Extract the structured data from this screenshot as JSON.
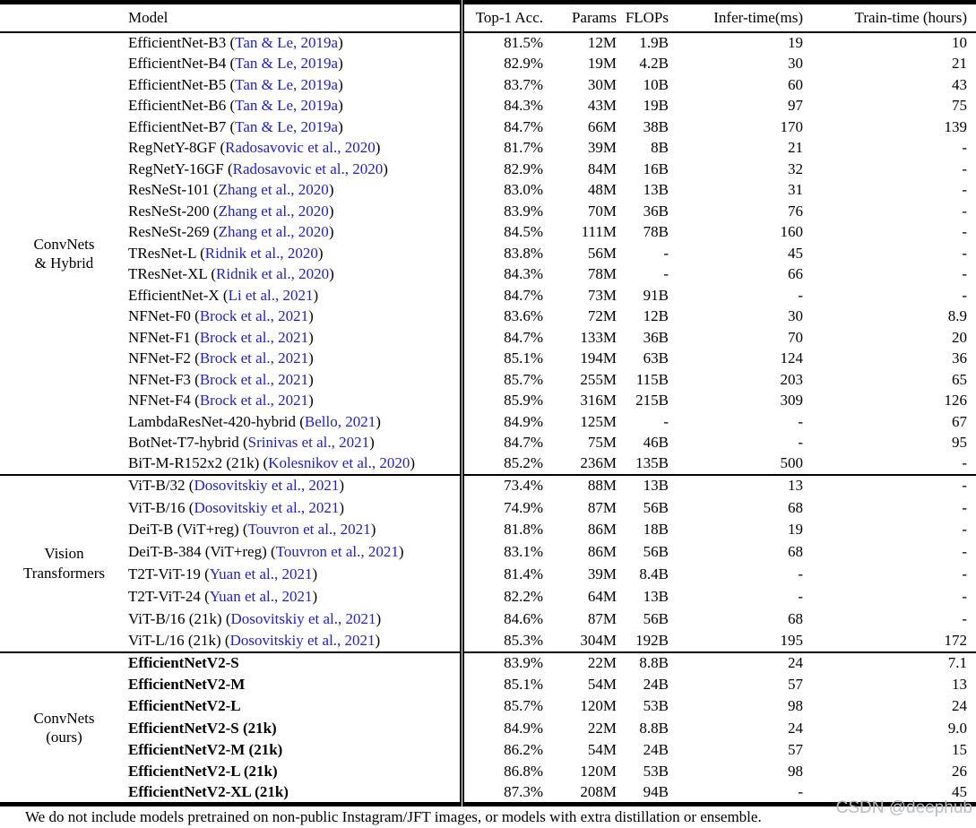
{
  "table": {
    "header": {
      "model_label": "Model",
      "metric_labels": [
        "Top-1 Acc.",
        "Params",
        "FLOPs",
        "Infer-time(ms)",
        "Train-time (hours)"
      ]
    },
    "sections": [
      {
        "group_lines": [
          "ConvNets",
          "& Hybrid"
        ],
        "bold": false,
        "rows": [
          {
            "model": "EfficientNet-B3",
            "cite": "Tan & Le, 2019a",
            "top1": "81.5%",
            "params": "12M",
            "flops": "1.9B",
            "infer": "19",
            "train": "10"
          },
          {
            "model": "EfficientNet-B4",
            "cite": "Tan & Le, 2019a",
            "top1": "82.9%",
            "params": "19M",
            "flops": "4.2B",
            "infer": "30",
            "train": "21"
          },
          {
            "model": "EfficientNet-B5",
            "cite": "Tan & Le, 2019a",
            "top1": "83.7%",
            "params": "30M",
            "flops": "10B",
            "infer": "60",
            "train": "43"
          },
          {
            "model": "EfficientNet-B6",
            "cite": "Tan & Le, 2019a",
            "top1": "84.3%",
            "params": "43M",
            "flops": "19B",
            "infer": "97",
            "train": "75"
          },
          {
            "model": "EfficientNet-B7",
            "cite": "Tan & Le, 2019a",
            "top1": "84.7%",
            "params": "66M",
            "flops": "38B",
            "infer": "170",
            "train": "139"
          },
          {
            "model": "RegNetY-8GF",
            "cite": "Radosavovic et al., 2020",
            "top1": "81.7%",
            "params": "39M",
            "flops": "8B",
            "infer": "21",
            "train": "-"
          },
          {
            "model": "RegNetY-16GF",
            "cite": "Radosavovic et al., 2020",
            "top1": "82.9%",
            "params": "84M",
            "flops": "16B",
            "infer": "32",
            "train": "-"
          },
          {
            "model": "ResNeSt-101",
            "cite": "Zhang et al., 2020",
            "top1": "83.0%",
            "params": "48M",
            "flops": "13B",
            "infer": "31",
            "train": "-"
          },
          {
            "model": "ResNeSt-200",
            "cite": "Zhang et al., 2020",
            "top1": "83.9%",
            "params": "70M",
            "flops": "36B",
            "infer": "76",
            "train": "-"
          },
          {
            "model": "ResNeSt-269",
            "cite": "Zhang et al., 2020",
            "top1": "84.5%",
            "params": "111M",
            "flops": "78B",
            "infer": "160",
            "train": "-"
          },
          {
            "model": "TResNet-L",
            "cite": "Ridnik et al., 2020",
            "top1": "83.8%",
            "params": "56M",
            "flops": "-",
            "infer": "45",
            "train": "-"
          },
          {
            "model": "TResNet-XL",
            "cite": "Ridnik et al., 2020",
            "top1": "84.3%",
            "params": "78M",
            "flops": "-",
            "infer": "66",
            "train": "-"
          },
          {
            "model": "EfficientNet-X",
            "cite": "Li et al., 2021",
            "top1": "84.7%",
            "params": "73M",
            "flops": "91B",
            "infer": "-",
            "train": "-"
          },
          {
            "model": "NFNet-F0",
            "cite": "Brock et al., 2021",
            "top1": "83.6%",
            "params": "72M",
            "flops": "12B",
            "infer": "30",
            "train": "8.9"
          },
          {
            "model": "NFNet-F1",
            "cite": "Brock et al., 2021",
            "top1": "84.7%",
            "params": "133M",
            "flops": "36B",
            "infer": "70",
            "train": "20"
          },
          {
            "model": "NFNet-F2",
            "cite": "Brock et al., 2021",
            "top1": "85.1%",
            "params": "194M",
            "flops": "63B",
            "infer": "124",
            "train": "36"
          },
          {
            "model": "NFNet-F3",
            "cite": "Brock et al., 2021",
            "top1": "85.7%",
            "params": "255M",
            "flops": "115B",
            "infer": "203",
            "train": "65"
          },
          {
            "model": "NFNet-F4",
            "cite": "Brock et al., 2021",
            "top1": "85.9%",
            "params": "316M",
            "flops": "215B",
            "infer": "309",
            "train": "126"
          },
          {
            "model": "LambdaResNet-420-hybrid",
            "cite": "Bello, 2021",
            "top1": "84.9%",
            "params": "125M",
            "flops": "-",
            "infer": "-",
            "train": "67"
          },
          {
            "model": "BotNet-T7-hybrid",
            "cite": "Srinivas et al., 2021",
            "top1": "84.7%",
            "params": "75M",
            "flops": "46B",
            "infer": "-",
            "train": "95"
          },
          {
            "model": "BiT-M-R152x2 (21k)",
            "cite": "Kolesnikov et al., 2020",
            "top1": "85.2%",
            "params": "236M",
            "flops": "135B",
            "infer": "500",
            "train": "-"
          }
        ]
      },
      {
        "group_lines": [
          "Vision",
          "Transformers"
        ],
        "bold": false,
        "rows": [
          {
            "model": "ViT-B/32",
            "cite": "Dosovitskiy et al., 2021",
            "top1": "73.4%",
            "params": "88M",
            "flops": "13B",
            "infer": "13",
            "train": "-"
          },
          {
            "model": "ViT-B/16",
            "cite": "Dosovitskiy et al., 2021",
            "top1": "74.9%",
            "params": "87M",
            "flops": "56B",
            "infer": "68",
            "train": "-"
          },
          {
            "model": "DeiT-B (ViT+reg)",
            "cite": "Touvron et al., 2021",
            "top1": "81.8%",
            "params": "86M",
            "flops": "18B",
            "infer": "19",
            "train": "-"
          },
          {
            "model": "DeiT-B-384 (ViT+reg)",
            "cite": "Touvron et al., 2021",
            "top1": "83.1%",
            "params": "86M",
            "flops": "56B",
            "infer": "68",
            "train": "-"
          },
          {
            "model": "T2T-ViT-19",
            "cite": "Yuan et al., 2021",
            "top1": "81.4%",
            "params": "39M",
            "flops": "8.4B",
            "infer": "-",
            "train": "-"
          },
          {
            "model": "T2T-ViT-24",
            "cite": "Yuan et al., 2021",
            "top1": "82.2%",
            "params": "64M",
            "flops": "13B",
            "infer": "-",
            "train": "-"
          },
          {
            "model": "ViT-B/16 (21k)",
            "cite": "Dosovitskiy et al., 2021",
            "top1": "84.6%",
            "params": "87M",
            "flops": "56B",
            "infer": "68",
            "train": "-"
          },
          {
            "model": "ViT-L/16 (21k)",
            "cite": "Dosovitskiy et al., 2021",
            "top1": "85.3%",
            "params": "304M",
            "flops": "192B",
            "infer": "195",
            "train": "172"
          }
        ]
      },
      {
        "group_lines": [
          "ConvNets",
          "(ours)"
        ],
        "bold": true,
        "rows": [
          {
            "model": "EfficientNetV2-S",
            "cite": null,
            "top1": "83.9%",
            "params": "22M",
            "flops": "8.8B",
            "infer": "24",
            "train": "7.1"
          },
          {
            "model": "EfficientNetV2-M",
            "cite": null,
            "top1": "85.1%",
            "params": "54M",
            "flops": "24B",
            "infer": "57",
            "train": "13"
          },
          {
            "model": "EfficientNetV2-L",
            "cite": null,
            "top1": "85.7%",
            "params": "120M",
            "flops": "53B",
            "infer": "98",
            "train": "24"
          },
          {
            "model": "EfficientNetV2-S (21k)",
            "cite": null,
            "top1": "84.9%",
            "params": "22M",
            "flops": "8.8B",
            "infer": "24",
            "train": "9.0"
          },
          {
            "model": "EfficientNetV2-M (21k)",
            "cite": null,
            "top1": "86.2%",
            "params": "54M",
            "flops": "24B",
            "infer": "57",
            "train": "15"
          },
          {
            "model": "EfficientNetV2-L (21k)",
            "cite": null,
            "top1": "86.8%",
            "params": "120M",
            "flops": "53B",
            "infer": "98",
            "train": "26"
          },
          {
            "model": "EfficientNetV2-XL (21k)",
            "cite": null,
            "top1": "87.3%",
            "params": "208M",
            "flops": "94B",
            "infer": "-",
            "train": "45"
          }
        ]
      }
    ]
  },
  "footnote": "We do not include models pretrained on non-public Instagram/JFT images, or models with extra distillation or ensemble.",
  "watermark": "CSDN @deephub",
  "colors": {
    "citation_blue": "#2121cc",
    "watermark_gray": "#b9bdc3",
    "rule_black": "#000000"
  }
}
